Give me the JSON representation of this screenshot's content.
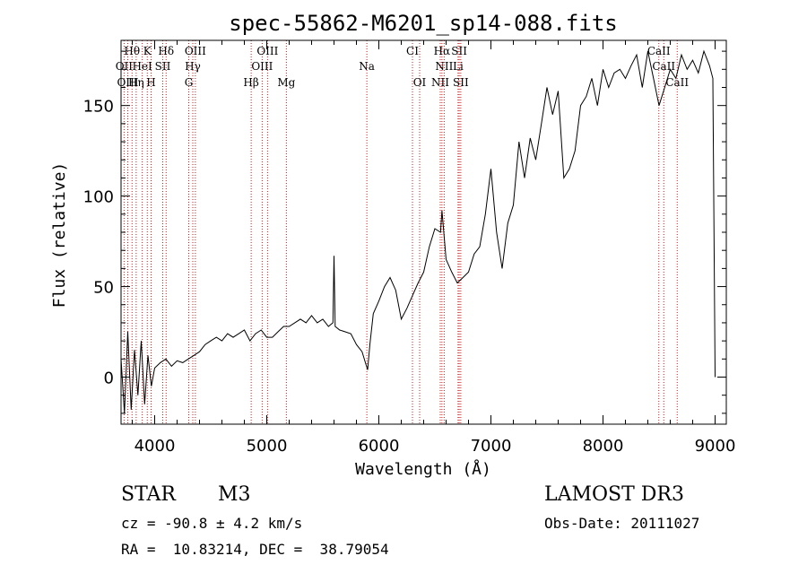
{
  "chart_data": {
    "type": "line",
    "title": "spec-55862-M6201_sp14-088.fits",
    "xlabel": "Wavelength (Å)",
    "ylabel": "Flux (relative)",
    "xlim": [
      3700,
      9100
    ],
    "ylim": [
      -26,
      186
    ],
    "xticks": [
      4000,
      5000,
      6000,
      7000,
      8000,
      9000
    ],
    "yticks": [
      0,
      50,
      100,
      150
    ],
    "grid": false,
    "series": [
      {
        "name": "flux",
        "x": [
          3700,
          3730,
          3760,
          3790,
          3820,
          3850,
          3880,
          3910,
          3940,
          3970,
          4000,
          4050,
          4100,
          4150,
          4200,
          4250,
          4300,
          4350,
          4400,
          4450,
          4500,
          4550,
          4600,
          4650,
          4700,
          4750,
          4800,
          4850,
          4900,
          4950,
          5000,
          5050,
          5100,
          5150,
          5200,
          5250,
          5300,
          5350,
          5400,
          5450,
          5500,
          5550,
          5590,
          5600,
          5610,
          5650,
          5700,
          5750,
          5800,
          5850,
          5880,
          5900,
          5920,
          5950,
          6000,
          6050,
          6100,
          6150,
          6200,
          6250,
          6300,
          6350,
          6400,
          6450,
          6500,
          6550,
          6563,
          6600,
          6650,
          6700,
          6750,
          6800,
          6850,
          6900,
          6950,
          7000,
          7050,
          7100,
          7150,
          7200,
          7250,
          7300,
          7350,
          7400,
          7450,
          7500,
          7550,
          7600,
          7650,
          7700,
          7750,
          7800,
          7850,
          7900,
          7950,
          8000,
          8050,
          8100,
          8150,
          8200,
          8250,
          8300,
          8350,
          8400,
          8450,
          8500,
          8550,
          8600,
          8650,
          8700,
          8750,
          8800,
          8850,
          8900,
          8950,
          8980,
          9000
        ],
        "y": [
          10,
          -20,
          25,
          -18,
          15,
          -10,
          20,
          -15,
          12,
          -5,
          5,
          8,
          10,
          6,
          9,
          8,
          10,
          12,
          14,
          18,
          20,
          22,
          20,
          24,
          22,
          24,
          26,
          20,
          24,
          26,
          22,
          22,
          25,
          28,
          28,
          30,
          32,
          30,
          34,
          30,
          32,
          28,
          30,
          67,
          28,
          26,
          25,
          24,
          18,
          14,
          8,
          4,
          18,
          35,
          42,
          50,
          55,
          48,
          32,
          38,
          45,
          52,
          58,
          72,
          82,
          80,
          92,
          65,
          58,
          52,
          55,
          58,
          68,
          72,
          90,
          115,
          80,
          60,
          85,
          95,
          130,
          110,
          132,
          120,
          140,
          160,
          145,
          158,
          110,
          115,
          125,
          150,
          155,
          165,
          150,
          170,
          160,
          168,
          170,
          165,
          172,
          178,
          160,
          180,
          165,
          150,
          160,
          170,
          165,
          178,
          170,
          175,
          168,
          180,
          172,
          165,
          0
        ]
      }
    ],
    "lines": [
      {
        "label": "Hθ",
        "x": 3798,
        "row": 1
      },
      {
        "label": "K",
        "x": 3934,
        "row": 1
      },
      {
        "label": "Hδ",
        "x": 4102,
        "row": 1
      },
      {
        "label": "OIII",
        "x": 4363,
        "row": 1
      },
      {
        "label": "OIII",
        "x": 5007,
        "row": 1
      },
      {
        "label": "CI",
        "x": 6300,
        "row": 1
      },
      {
        "label": "Hα",
        "x": 6563,
        "row": 1
      },
      {
        "label": "SII",
        "x": 6717,
        "row": 1
      },
      {
        "label": "CaII",
        "x": 8498,
        "row": 1
      },
      {
        "label": "OII",
        "x": 3727,
        "row": 2
      },
      {
        "label": "HeI",
        "x": 3889,
        "row": 2
      },
      {
        "label": "SII",
        "x": 4072,
        "row": 2
      },
      {
        "label": "Hγ",
        "x": 4340,
        "row": 2
      },
      {
        "label": "OIII",
        "x": 4959,
        "row": 2
      },
      {
        "label": "Na",
        "x": 5893,
        "row": 2
      },
      {
        "label": "NII",
        "x": 6583,
        "row": 2
      },
      {
        "label": "Li",
        "x": 6707,
        "row": 2
      },
      {
        "label": "CaII",
        "x": 8542,
        "row": 2
      },
      {
        "label": "OIII",
        "x": 3760,
        "row": 3
      },
      {
        "label": "Hη",
        "x": 3835,
        "row": 3
      },
      {
        "label": "H",
        "x": 3968,
        "row": 3
      },
      {
        "label": "G",
        "x": 4304,
        "row": 3
      },
      {
        "label": "Hβ",
        "x": 4861,
        "row": 3
      },
      {
        "label": "Mg",
        "x": 5175,
        "row": 3
      },
      {
        "label": "OI",
        "x": 6364,
        "row": 3
      },
      {
        "label": "NII",
        "x": 6548,
        "row": 3
      },
      {
        "label": "SII",
        "x": 6731,
        "row": 3
      },
      {
        "label": "CaII",
        "x": 8662,
        "row": 3
      }
    ]
  },
  "info": {
    "class_label": "STAR",
    "subclass": "M3",
    "survey": "LAMOST DR3",
    "cz": "cz = -90.8 ± 4.2 km/s",
    "obs_date": "Obs-Date: 20111027",
    "coords": "RA =  10.83214, DEC =  38.79054"
  },
  "colors": {
    "line_marker": "#c81e1e",
    "spectrum": "#000000"
  }
}
